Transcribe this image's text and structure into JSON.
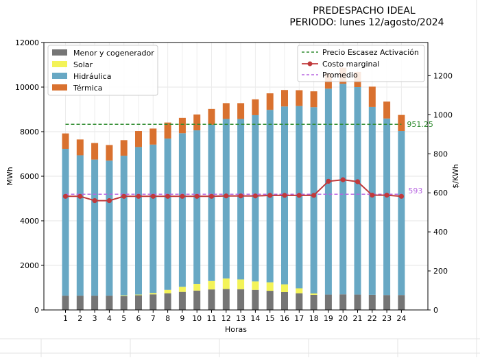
{
  "chart_data": {
    "type": "bar",
    "title_line1": "PREDESPACHO IDEAL",
    "title_line2": "PERIODO: lunes 12/agosto/2024",
    "xlabel": "Horas",
    "ylabel": "MWh",
    "y2label": "$/KWh",
    "categories": [
      "1",
      "2",
      "3",
      "4",
      "5",
      "6",
      "7",
      "8",
      "9",
      "10",
      "11",
      "12",
      "13",
      "14",
      "15",
      "16",
      "17",
      "18",
      "19",
      "20",
      "21",
      "22",
      "23",
      "24"
    ],
    "ylim": [
      0,
      12000
    ],
    "y_ticks": [
      0,
      2000,
      4000,
      6000,
      8000,
      10000,
      12000
    ],
    "y2lim": [
      0,
      1370
    ],
    "y2_ticks": [
      0,
      200,
      400,
      600,
      800,
      1000,
      1200
    ],
    "series": [
      {
        "name": "Menor y cogenerador",
        "color": "#757575",
        "values": [
          640,
          640,
          640,
          640,
          620,
          660,
          700,
          750,
          810,
          870,
          920,
          940,
          930,
          900,
          860,
          800,
          750,
          680,
          690,
          700,
          690,
          680,
          670,
          670
        ]
      },
      {
        "name": "Solar",
        "color": "#f3f358",
        "values": [
          0,
          0,
          0,
          0,
          30,
          30,
          60,
          150,
          230,
          300,
          380,
          470,
          440,
          380,
          380,
          350,
          220,
          60,
          0,
          0,
          0,
          0,
          0,
          0
        ]
      },
      {
        "name": "Hidráulica",
        "color": "#68a8c4",
        "values": [
          6590,
          6300,
          6110,
          6060,
          6270,
          6620,
          6660,
          6790,
          6890,
          6890,
          7010,
          7160,
          7200,
          7460,
          7740,
          7980,
          8180,
          8360,
          9240,
          9450,
          9310,
          8430,
          7920,
          7360
        ]
      },
      {
        "name": "Térmica",
        "color": "#d9712f",
        "values": [
          690,
          710,
          740,
          700,
          700,
          720,
          720,
          720,
          690,
          710,
          710,
          710,
          710,
          710,
          740,
          740,
          710,
          710,
          690,
          720,
          680,
          910,
          760,
          720
        ]
      }
    ],
    "lines": [
      {
        "name": "Precio Escasez Activación",
        "style": "dashed",
        "color": "#2e8b2e",
        "axis": "right",
        "value": 951.25,
        "label": "951.25"
      },
      {
        "name": "Costo marginal",
        "style": "solid-marker",
        "color": "#c0393b",
        "axis": "right",
        "values": [
          582,
          582,
          560,
          560,
          582,
          582,
          582,
          582,
          582,
          582,
          582,
          584,
          584,
          584,
          587,
          587,
          587,
          587,
          659,
          667,
          657,
          588,
          588,
          582
        ]
      },
      {
        "name": "Promedio",
        "style": "dashed",
        "color": "#b765e0",
        "axis": "right",
        "value": 593,
        "label": "593"
      }
    ],
    "legend_left_placement": "top-left",
    "legend_right_placement": "top-right",
    "grid": true
  }
}
